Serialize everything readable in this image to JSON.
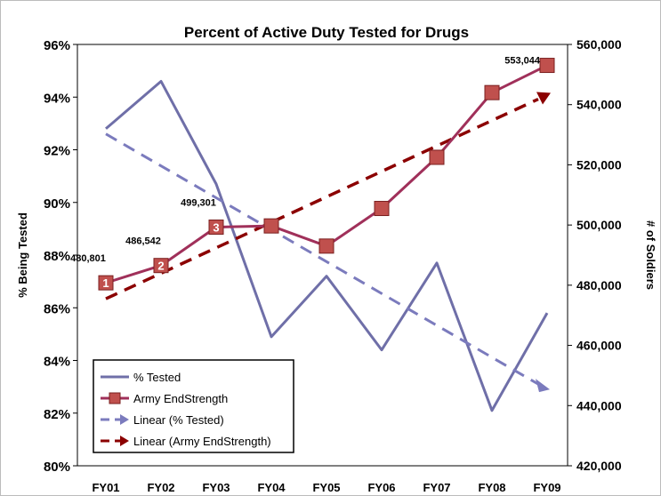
{
  "chart_data": {
    "type": "line",
    "title": "Percent of Active Duty Tested for Drugs",
    "categories": [
      "FY01",
      "FY02",
      "FY03",
      "FY04",
      "FY05",
      "FY06",
      "FY07",
      "FY08",
      "FY09"
    ],
    "y_left": {
      "label": "% Being Tested",
      "range": [
        80,
        96
      ],
      "ticks": [
        "80%",
        "82%",
        "84%",
        "86%",
        "88%",
        "90%",
        "92%",
        "94%",
        "96%"
      ]
    },
    "y_right": {
      "label": "# of Soldiers",
      "range": [
        420000,
        560000
      ],
      "ticks": [
        "420,000",
        "440,000",
        "460,000",
        "480,000",
        "500,000",
        "520,000",
        "540,000",
        "560,000"
      ]
    },
    "series": [
      {
        "name": "% Tested",
        "axis": "left",
        "color": "#6f6fa8",
        "values": [
          92.8,
          94.6,
          90.7,
          84.9,
          87.2,
          84.4,
          87.7,
          82.1,
          85.8
        ]
      },
      {
        "name": "Army EndStrength",
        "axis": "right",
        "color": "#a0305a",
        "marker_color": "#c0504d",
        "values": [
          480801,
          486542,
          499301,
          499700,
          493000,
          505500,
          522500,
          544000,
          553044
        ],
        "data_labels": [
          "480,801",
          "486,542",
          "499,301",
          "",
          "",
          "",
          "",
          "",
          "553,044"
        ],
        "marker_numbers": [
          "1",
          "2",
          "3",
          "",
          "",
          "",
          "",
          "",
          ""
        ]
      },
      {
        "name": "Linear (% Tested)",
        "axis": "left",
        "color": "#7b7bbd",
        "dash": true,
        "values": [
          92.6,
          91.4,
          90.2,
          89.1,
          87.9,
          86.7,
          85.5,
          84.3,
          83.0
        ]
      },
      {
        "name": "Linear (Army EndStrength)",
        "axis": "right",
        "color": "#8b0000",
        "dash": true,
        "values": [
          475500,
          484100,
          492700,
          501300,
          509900,
          518500,
          527100,
          535700,
          543300
        ]
      }
    ],
    "legend": {
      "placement": "bottom-left",
      "entries": [
        "% Tested",
        "Army EndStrength",
        "Linear (% Tested)",
        "Linear (Army EndStrength)"
      ]
    },
    "grid": false
  }
}
